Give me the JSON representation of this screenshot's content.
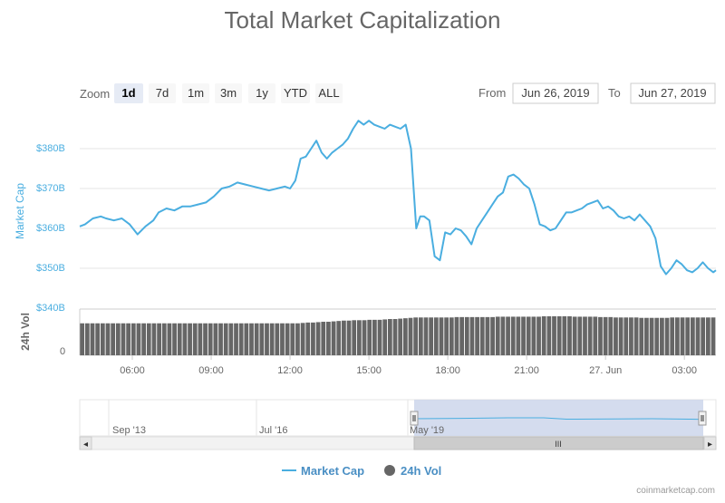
{
  "colors": {
    "line": "#4aaee0",
    "volume": "#666666",
    "title": "#666666",
    "axis_label": "#4aaee0",
    "navigator_fill": "#ccd6eb",
    "grid": "#e6e6e6"
  },
  "toolbar": {
    "zoom_label": "Zoom",
    "buttons": [
      "1d",
      "7d",
      "1m",
      "3m",
      "1y",
      "YTD",
      "ALL"
    ],
    "selected": "1d",
    "from_label": "From",
    "from_value": "Jun 26, 2019",
    "to_label": "To",
    "to_value": "Jun 27, 2019"
  },
  "navigator": {
    "labels": [
      "Sep '13",
      "Jul '16",
      "May '19"
    ],
    "scrollbar_grip": "III",
    "left_arrow": "◂",
    "right_arrow": "▸"
  },
  "credit": "coinmarketcap.com",
  "chart_data": {
    "type": "line",
    "title": "Total Market Capitalization",
    "ylabel": "Market Cap",
    "y2label": "24h Vol",
    "ylim": [
      340,
      385
    ],
    "y_unit": "B",
    "y_ticks": [
      "$340B",
      "$350B",
      "$360B",
      "$370B",
      "$380B"
    ],
    "y_tick_values": [
      340,
      350,
      360,
      370,
      380
    ],
    "vol_ticks": [
      "0"
    ],
    "x_ticks": [
      "06:00",
      "09:00",
      "12:00",
      "15:00",
      "18:00",
      "21:00",
      "27. Jun",
      "03:00"
    ],
    "x_tick_hours": [
      6,
      9,
      12,
      15,
      18,
      21,
      24,
      27
    ],
    "x_range_hours": [
      4.0,
      28.2
    ],
    "grid": true,
    "legend_position": "bottom-center",
    "series": [
      {
        "name": "Market Cap",
        "type": "line",
        "x_hours": [
          4.0,
          4.2,
          4.5,
          4.8,
          5.0,
          5.3,
          5.6,
          5.9,
          6.2,
          6.5,
          6.8,
          7.0,
          7.3,
          7.6,
          7.9,
          8.2,
          8.5,
          8.8,
          9.1,
          9.4,
          9.7,
          10.0,
          10.3,
          10.6,
          10.9,
          11.2,
          11.5,
          11.8,
          12.0,
          12.2,
          12.4,
          12.6,
          12.8,
          13.0,
          13.2,
          13.4,
          13.6,
          13.8,
          14.0,
          14.2,
          14.4,
          14.6,
          14.8,
          15.0,
          15.2,
          15.4,
          15.6,
          15.8,
          16.0,
          16.2,
          16.4,
          16.6,
          16.8,
          16.95,
          17.1,
          17.3,
          17.5,
          17.7,
          17.9,
          18.1,
          18.3,
          18.5,
          18.7,
          18.9,
          19.1,
          19.3,
          19.5,
          19.7,
          19.9,
          20.1,
          20.3,
          20.5,
          20.7,
          20.9,
          21.1,
          21.3,
          21.5,
          21.7,
          21.9,
          22.1,
          22.3,
          22.5,
          22.7,
          22.9,
          23.1,
          23.3,
          23.5,
          23.7,
          23.9,
          24.1,
          24.3,
          24.5,
          24.7,
          24.9,
          25.1,
          25.3,
          25.5,
          25.7,
          25.9,
          26.1,
          26.3,
          26.5,
          26.7,
          26.9,
          27.1,
          27.3,
          27.5,
          27.7,
          27.9,
          28.1,
          28.2
        ],
        "values": [
          360.5,
          361.0,
          362.5,
          363.0,
          362.5,
          362.0,
          362.5,
          361.0,
          358.5,
          360.5,
          362.0,
          364.0,
          365.0,
          364.5,
          365.5,
          365.5,
          366.0,
          366.5,
          368.0,
          370.0,
          370.5,
          371.5,
          371.0,
          370.5,
          370.0,
          369.5,
          370.0,
          370.5,
          370.0,
          372.0,
          377.5,
          378.0,
          380.0,
          382.0,
          379.0,
          377.5,
          379.0,
          380.0,
          381.0,
          382.5,
          385.0,
          387.0,
          386.0,
          387.0,
          386.0,
          385.5,
          385.0,
          386.0,
          385.5,
          385.0,
          386.0,
          380.0,
          360.0,
          363.0,
          363.0,
          362.0,
          353.0,
          352.0,
          359.0,
          358.5,
          360.0,
          359.5,
          358.0,
          356.0,
          360.0,
          362.0,
          364.0,
          366.0,
          368.0,
          369.0,
          373.0,
          373.5,
          372.5,
          371.0,
          370.0,
          366.0,
          361.0,
          360.5,
          359.5,
          360.0,
          362.0,
          364.0,
          364.0,
          364.5,
          365.0,
          366.0,
          366.5,
          367.0,
          365.0,
          365.5,
          364.5,
          363.0,
          362.5,
          363.0,
          362.0,
          363.5,
          362.0,
          360.5,
          357.5,
          350.5,
          348.5,
          350.0,
          352.0,
          351.0,
          349.5,
          349.0,
          350.0,
          351.5,
          350.0,
          349.0,
          349.5
        ]
      },
      {
        "name": "24h Vol",
        "type": "column",
        "x_hours_start": 4.0,
        "x_hours_end": 28.2,
        "bar_count": 124,
        "relative_values": [
          0.82,
          0.82,
          0.82,
          0.82,
          0.82,
          0.82,
          0.82,
          0.82,
          0.82,
          0.82,
          0.82,
          0.82,
          0.82,
          0.82,
          0.82,
          0.82,
          0.82,
          0.82,
          0.82,
          0.82,
          0.82,
          0.82,
          0.82,
          0.82,
          0.82,
          0.82,
          0.82,
          0.82,
          0.82,
          0.82,
          0.82,
          0.82,
          0.82,
          0.82,
          0.82,
          0.82,
          0.82,
          0.82,
          0.82,
          0.82,
          0.82,
          0.82,
          0.82,
          0.83,
          0.84,
          0.84,
          0.85,
          0.86,
          0.86,
          0.87,
          0.88,
          0.89,
          0.89,
          0.9,
          0.9,
          0.9,
          0.91,
          0.91,
          0.91,
          0.92,
          0.93,
          0.93,
          0.94,
          0.95,
          0.96,
          0.97,
          0.97,
          0.97,
          0.97,
          0.97,
          0.97,
          0.97,
          0.97,
          0.98,
          0.98,
          0.98,
          0.98,
          0.98,
          0.98,
          0.98,
          0.98,
          0.99,
          0.99,
          0.99,
          0.99,
          0.99,
          0.99,
          0.99,
          0.99,
          0.99,
          1.0,
          1.0,
          1.0,
          1.0,
          1.0,
          1.0,
          0.99,
          0.99,
          0.99,
          0.99,
          0.99,
          0.98,
          0.98,
          0.98,
          0.97,
          0.97,
          0.97,
          0.97,
          0.97,
          0.96,
          0.96,
          0.96,
          0.96,
          0.96,
          0.96,
          0.97,
          0.97,
          0.97,
          0.97,
          0.97,
          0.97,
          0.97,
          0.97,
          0.97
        ]
      }
    ]
  }
}
